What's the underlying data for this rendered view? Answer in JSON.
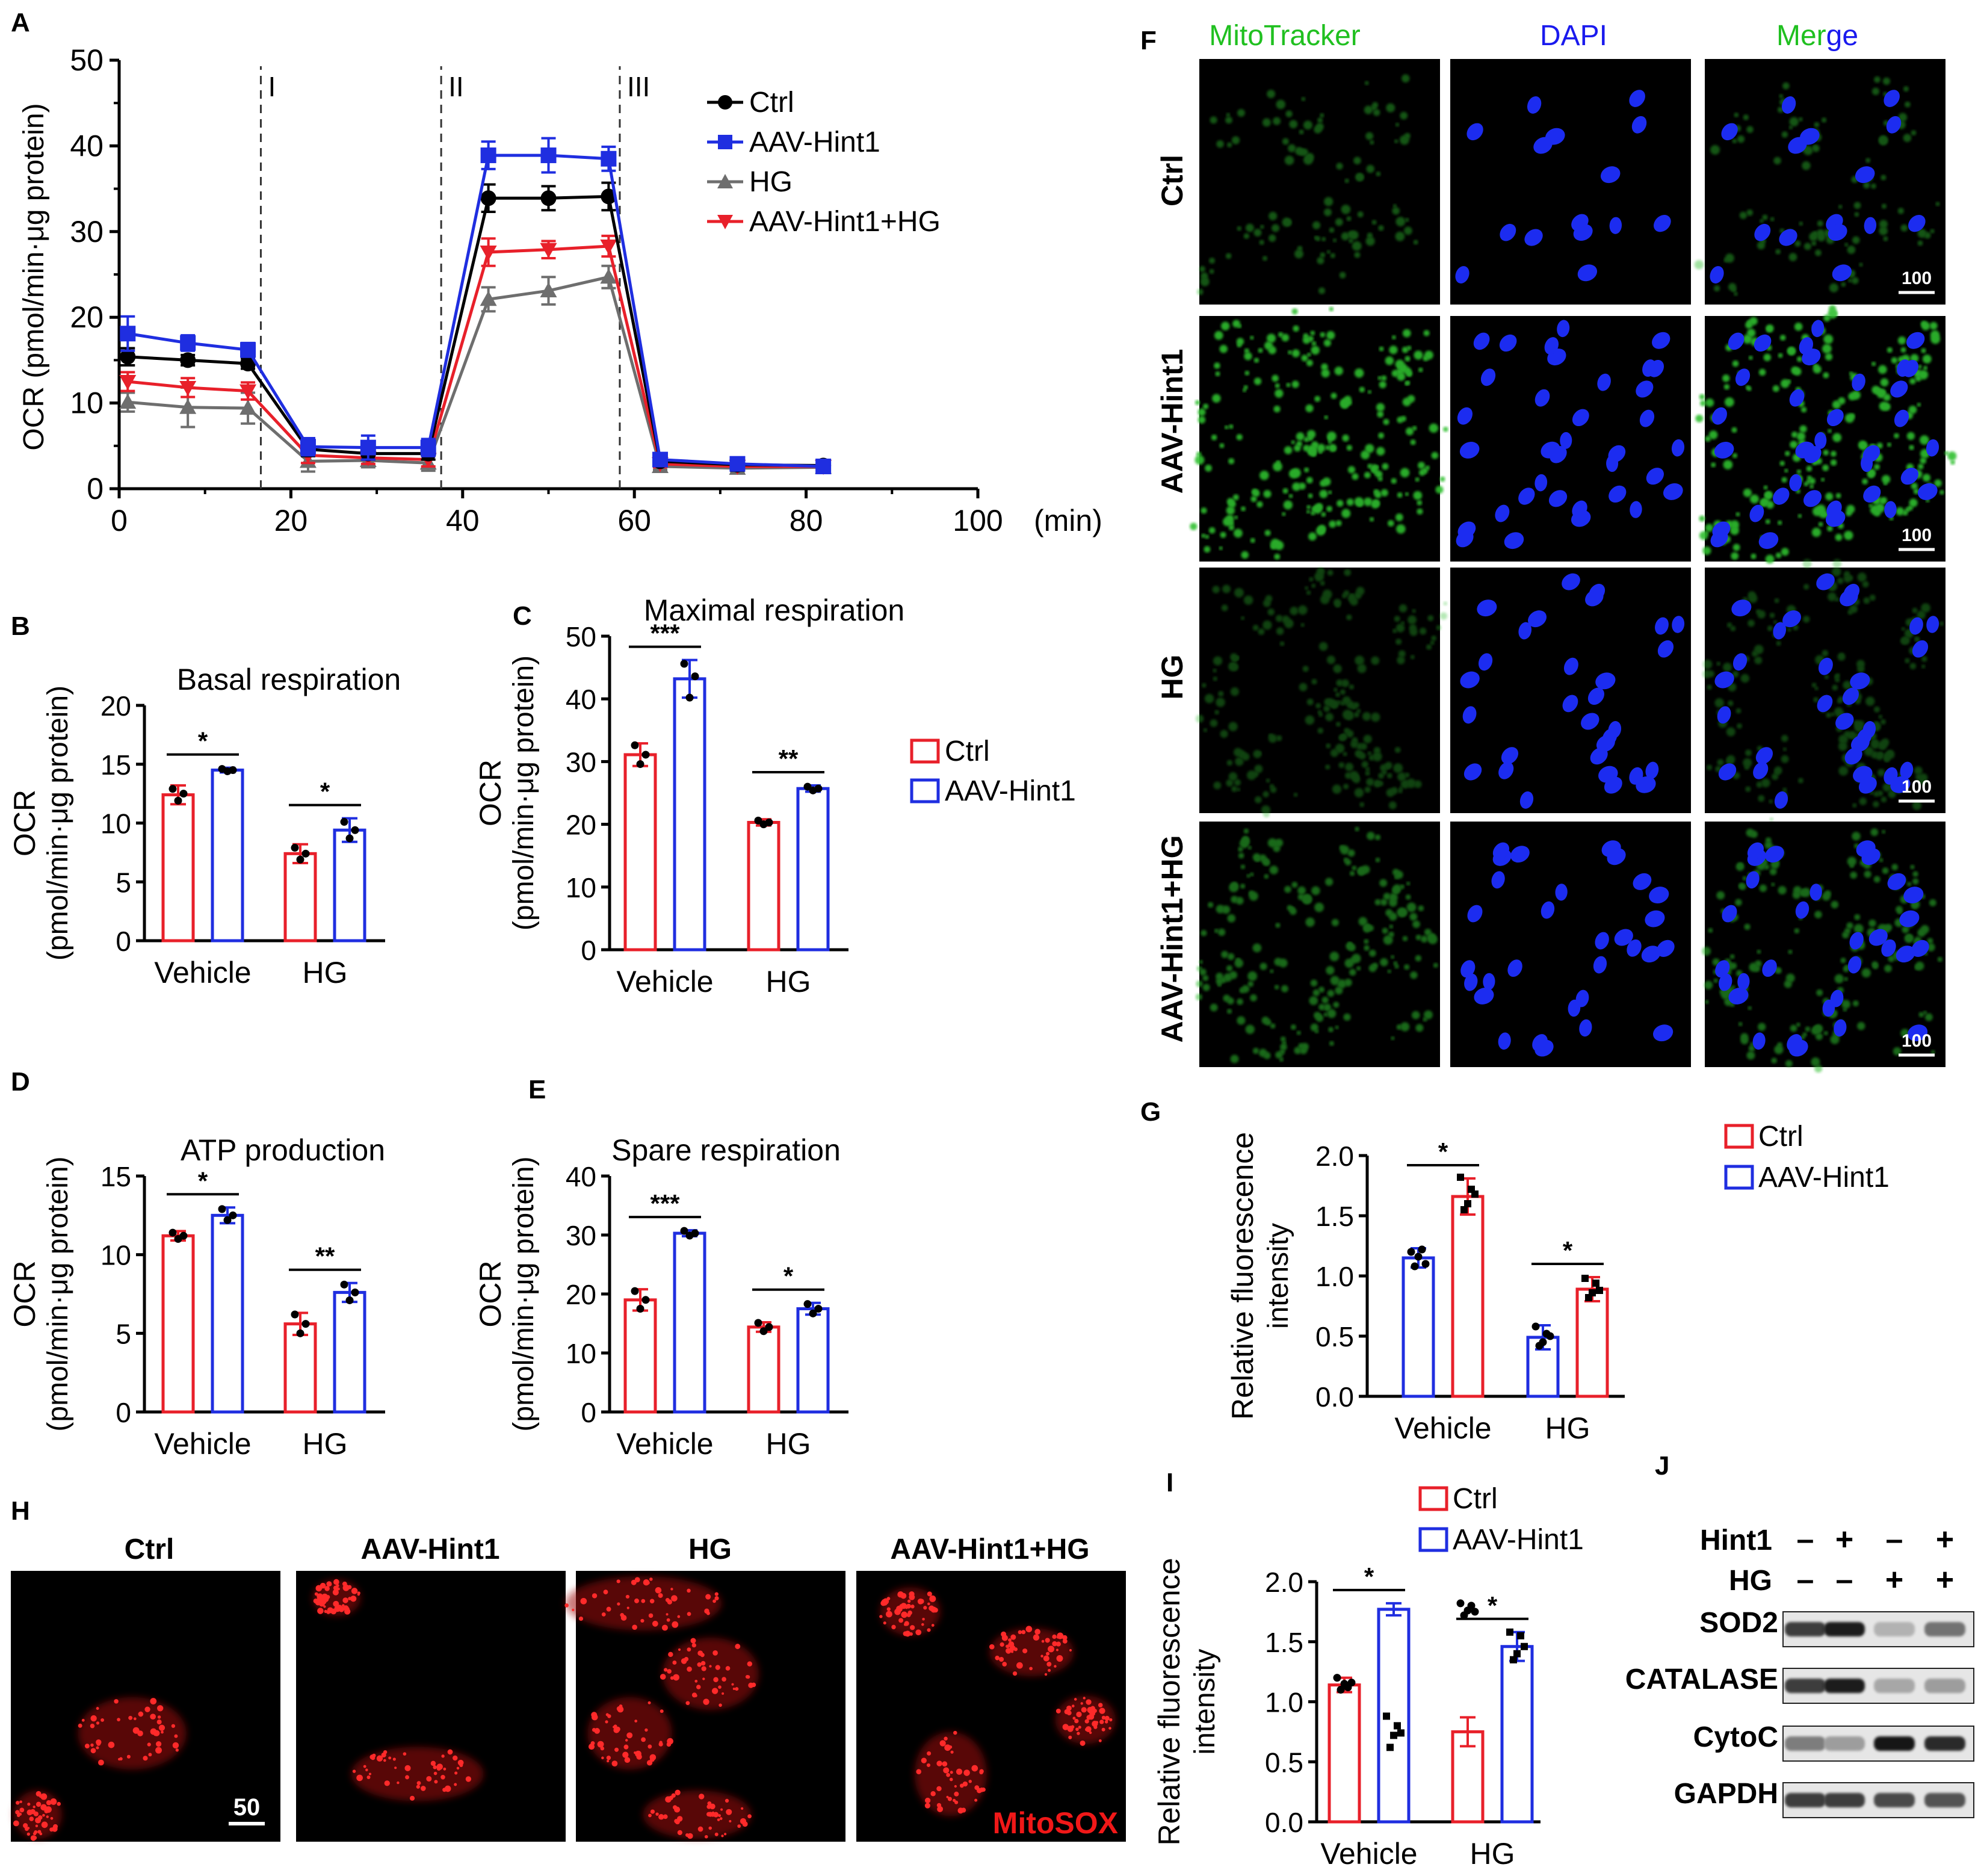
{
  "colors": {
    "ctrl": "#000000",
    "aav": "#1f2ee0",
    "hg": "#6e6e6e",
    "aavhg": "#e8202a",
    "green": "#20c020",
    "blue": "#1a1aee",
    "red_text": "#f01818"
  },
  "icons": {
    "down_triangle": "down-triangle-marker",
    "up_triangle": "up-triangle-marker"
  },
  "chart_data": [
    {
      "panel": "A",
      "type": "line",
      "xlabel": "(min)",
      "ylabel": "OCR (pmol/min·μg protein)",
      "xlim": [
        0,
        100
      ],
      "ylim": [
        0,
        50
      ],
      "xticks": [
        "0",
        "20",
        "40",
        "60",
        "80",
        "100"
      ],
      "yticks": [
        "0",
        "10",
        "20",
        "30",
        "40",
        "50"
      ],
      "injections": [
        "I",
        "II",
        "III"
      ],
      "injection_x": [
        16.5,
        37.5,
        58.3
      ],
      "x": [
        1,
        8,
        15,
        22,
        29,
        36,
        43,
        50,
        57,
        63,
        72,
        82
      ],
      "series": [
        {
          "name": "Ctrl",
          "values": [
            15.4,
            15.0,
            14.6,
            4.6,
            4.1,
            4.1,
            33.9,
            33.9,
            34.1,
            3.2,
            2.8,
            2.7
          ],
          "err": [
            1.0,
            0.6,
            0.6,
            0.8,
            0.7,
            0.7,
            1.6,
            1.4,
            1.6,
            0.5,
            0.7,
            0.4
          ]
        },
        {
          "name": "AAV-Hint1",
          "values": [
            18.1,
            17.0,
            16.2,
            4.9,
            4.8,
            4.8,
            38.9,
            38.9,
            38.5,
            3.4,
            2.9,
            2.6
          ],
          "err": [
            2.0,
            0.9,
            0.8,
            1.0,
            1.4,
            1.0,
            1.6,
            2.0,
            1.4,
            0.4,
            0.4,
            0.4
          ]
        },
        {
          "name": "HG",
          "values": [
            10.1,
            9.5,
            9.4,
            3.2,
            3.3,
            3.0,
            22.1,
            23.1,
            24.7,
            2.6,
            2.4,
            2.5
          ],
          "err": [
            1.1,
            2.3,
            1.8,
            1.2,
            0.8,
            0.9,
            1.4,
            1.6,
            1.3,
            0.4,
            0.4,
            0.4
          ]
        },
        {
          "name": "AAV-Hint1+HG",
          "values": [
            12.5,
            11.8,
            11.4,
            3.9,
            3.6,
            3.4,
            27.6,
            27.9,
            28.3,
            2.9,
            2.6,
            2.6
          ],
          "err": [
            1.1,
            1.1,
            1.0,
            0.9,
            0.7,
            0.8,
            1.6,
            1.0,
            1.2,
            0.4,
            0.4,
            0.4
          ]
        }
      ]
    },
    {
      "panel": "B",
      "type": "bar",
      "title": "Basal respiration",
      "ylabel": "OCR",
      "ylabel2": "(pmol/min·μg protein)",
      "ylim": [
        0,
        20
      ],
      "yticks": [
        "0",
        "5",
        "10",
        "15",
        "20"
      ],
      "categories": [
        "Vehicle",
        "HG"
      ],
      "series": [
        {
          "name": "Ctrl",
          "values": [
            12.4,
            7.4
          ],
          "err": [
            0.8,
            0.8
          ]
        },
        {
          "name": "AAV-Hint1",
          "values": [
            14.5,
            9.4
          ],
          "err": [
            0.2,
            1.0
          ]
        }
      ],
      "points": [
        [
          [
            12.9,
            11.9,
            12.5
          ],
          [
            14.6,
            14.4,
            14.5
          ]
        ],
        [
          [
            7.9,
            6.9,
            7.4
          ],
          [
            10.1,
            8.7,
            9.4
          ]
        ]
      ],
      "sig": [
        "*",
        "*"
      ]
    },
    {
      "panel": "C",
      "type": "bar",
      "title": "Maximal respiration",
      "ylabel": "OCR",
      "ylabel2": "(pmol/min·μg protein)",
      "ylim": [
        0,
        50
      ],
      "yticks": [
        "0",
        "10",
        "20",
        "30",
        "40",
        "50"
      ],
      "categories": [
        "Vehicle",
        "HG"
      ],
      "series": [
        {
          "name": "Ctrl",
          "values": [
            31.1,
            20.3
          ],
          "err": [
            1.8,
            0.5
          ]
        },
        {
          "name": "AAV-Hint1",
          "values": [
            43.2,
            25.7
          ],
          "err": [
            3.0,
            0.5
          ]
        }
      ],
      "points": [
        [
          [
            32.6,
            29.6,
            31.1
          ],
          [
            45.6,
            40.2,
            43.6
          ]
        ],
        [
          [
            20.6,
            20.0,
            20.3
          ],
          [
            26.0,
            25.4,
            25.7
          ]
        ]
      ],
      "sig": [
        "***",
        "**"
      ]
    },
    {
      "panel": "D",
      "type": "bar",
      "title": "ATP production",
      "ylabel": "OCR",
      "ylabel2": "(pmol/min·μg protein)",
      "ylim": [
        0,
        15
      ],
      "yticks": [
        "0",
        "5",
        "10",
        "15"
      ],
      "categories": [
        "Vehicle",
        "HG"
      ],
      "series": [
        {
          "name": "Ctrl",
          "values": [
            11.2,
            5.6
          ],
          "err": [
            0.3,
            0.7
          ]
        },
        {
          "name": "AAV-Hint1",
          "values": [
            12.5,
            7.6
          ],
          "err": [
            0.5,
            0.6
          ]
        }
      ],
      "points": [
        [
          [
            11.4,
            11.0,
            11.2
          ],
          [
            12.9,
            12.2,
            12.5
          ]
        ],
        [
          [
            6.2,
            5.0,
            5.6
          ],
          [
            8.1,
            7.1,
            7.6
          ]
        ]
      ],
      "sig": [
        "*",
        "**"
      ]
    },
    {
      "panel": "E",
      "type": "bar",
      "title": "Spare respiration",
      "ylabel": "OCR",
      "ylabel2": "(pmol/min·μg protein)",
      "ylim": [
        0,
        40
      ],
      "yticks": [
        "0",
        "10",
        "20",
        "30",
        "40"
      ],
      "categories": [
        "Vehicle",
        "HG"
      ],
      "series": [
        {
          "name": "Ctrl",
          "values": [
            19.0,
            14.4
          ],
          "err": [
            1.8,
            0.8
          ]
        },
        {
          "name": "AAV-Hint1",
          "values": [
            30.3,
            17.5
          ],
          "err": [
            0.5,
            1.0
          ]
        }
      ],
      "points": [
        [
          [
            20.5,
            17.5,
            19.0
          ],
          [
            30.7,
            29.9,
            30.3
          ]
        ],
        [
          [
            15.1,
            13.7,
            14.4
          ],
          [
            18.3,
            16.7,
            17.5
          ]
        ]
      ],
      "sig": [
        "***",
        "*"
      ]
    },
    {
      "panel": "G",
      "type": "bar",
      "ylabel": "Relative fluorescence",
      "ylabel2": "intensity",
      "ylim": [
        0,
        2
      ],
      "yticks": [
        "0.0",
        "0.5",
        "1.0",
        "1.5",
        "2.0"
      ],
      "categories": [
        "Vehicle",
        "HG"
      ],
      "series": [
        {
          "name": "AAV-Hint1",
          "values": [
            1.15,
            0.49
          ],
          "err": [
            0.08,
            0.1
          ]
        },
        {
          "name": "Ctrl",
          "values": [
            1.66,
            0.89
          ],
          "err": [
            0.15,
            0.1
          ]
        }
      ],
      "points": [
        [
          [
            1.2,
            1.08,
            1.16,
            1.22,
            1.1
          ],
          [
            1.82,
            1.55,
            1.6,
            1.72,
            1.68
          ]
        ],
        [
          [
            0.58,
            0.42,
            0.45,
            0.52,
            0.5
          ],
          [
            0.98,
            0.82,
            0.86,
            0.94,
            0.88
          ]
        ]
      ],
      "sig": [
        "*",
        "*"
      ]
    },
    {
      "panel": "I",
      "type": "bar",
      "ylabel": "Relative fluorescence",
      "ylabel2": "intensity",
      "ylim": [
        0,
        2
      ],
      "yticks": [
        "0.0",
        "0.5",
        "1.0",
        "1.5",
        "2.0"
      ],
      "categories": [
        "Vehicle",
        "HG"
      ],
      "series": [
        {
          "name": "Ctrl",
          "values": [
            1.14,
            0.75
          ],
          "err": [
            0.06,
            0.12
          ]
        },
        {
          "name": "AAV-Hint1",
          "values": [
            1.77,
            1.46
          ],
          "err": [
            0.05,
            0.12
          ]
        }
      ],
      "points": [
        [
          [
            1.2,
            1.1,
            1.15,
            1.12,
            1.16
          ],
          [
            0.88,
            0.62,
            0.72,
            0.8,
            0.74
          ]
        ],
        [
          [
            1.82,
            1.72,
            1.76,
            1.8,
            1.75
          ],
          [
            1.58,
            1.35,
            1.4,
            1.55,
            1.46
          ]
        ]
      ],
      "sig": [
        "*",
        "*"
      ]
    }
  ],
  "panels": {
    "A": "A",
    "B": "B",
    "C": "C",
    "D": "D",
    "E": "E",
    "F": "F",
    "G": "G",
    "H": "H",
    "I": "I",
    "J": "J"
  },
  "legends": {
    "A": [
      "Ctrl",
      "AAV-Hint1",
      "HG",
      "AAV-Hint1+HG"
    ],
    "BC": [
      "Ctrl",
      "AAV-Hint1"
    ],
    "G": [
      "Ctrl",
      "AAV-Hint1"
    ],
    "I": [
      "Ctrl",
      "AAV-Hint1"
    ]
  },
  "panelF": {
    "columns": [
      "MitoTracker",
      "DAPI",
      "Merge"
    ],
    "rows": [
      "Ctrl",
      "AAV-Hint1",
      "HG",
      "AAV-Hint1+HG"
    ],
    "scale": "100"
  },
  "panelH": {
    "labels": [
      "Ctrl",
      "AAV-Hint1",
      "HG",
      "AAV-Hint1+HG"
    ],
    "scale": "50",
    "stain": "MitoSOX"
  },
  "panelJ": {
    "row_labels": [
      "Hint1",
      "HG"
    ],
    "signs": [
      [
        "–",
        "+",
        "–",
        "+"
      ],
      [
        "–",
        "–",
        "+",
        "+"
      ]
    ],
    "proteins": [
      "SOD2",
      "CATALASE",
      "CytoC",
      "GAPDH"
    ],
    "intensity": [
      [
        0.8,
        0.95,
        0.25,
        0.55
      ],
      [
        0.8,
        0.95,
        0.3,
        0.35
      ],
      [
        0.5,
        0.35,
        1.0,
        0.9
      ],
      [
        0.8,
        0.8,
        0.75,
        0.7
      ]
    ]
  }
}
